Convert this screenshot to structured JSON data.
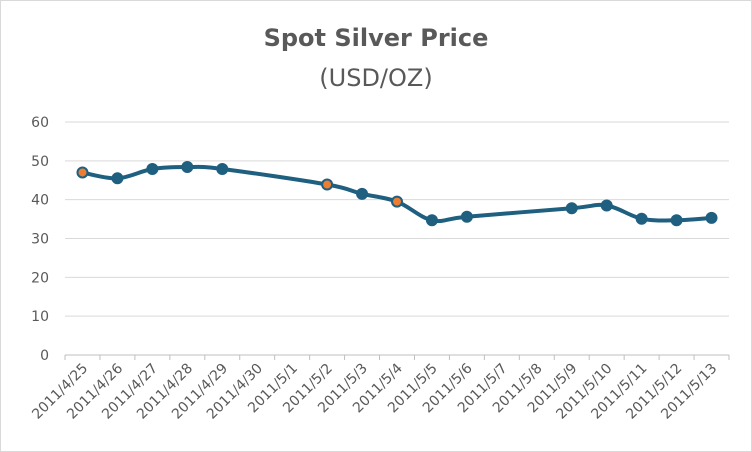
{
  "chart_data": {
    "type": "line",
    "title": "Spot Silver Price",
    "subtitle": "(USD/OZ)",
    "categories": [
      "2011/4/25",
      "2011/4/26",
      "2011/4/27",
      "2011/4/28",
      "2011/4/29",
      "2011/4/30",
      "2011/5/1",
      "2011/5/2",
      "2011/5/3",
      "2011/5/4",
      "2011/5/5",
      "2011/5/6",
      "2011/5/7",
      "2011/5/8",
      "2011/5/9",
      "2011/5/10",
      "2011/5/11",
      "2011/5/12",
      "2011/5/13"
    ],
    "series": [
      {
        "values": [
          47.0,
          45.5,
          47.9,
          48.4,
          47.9,
          null,
          null,
          43.9,
          41.5,
          39.5,
          34.7,
          35.6,
          null,
          null,
          37.8,
          38.5,
          35.1,
          34.7,
          35.3
        ],
        "highlighted_points": [
          "2011/4/25",
          "2011/5/2",
          "2011/5/4"
        ]
      }
    ],
    "ylim": [
      0,
      60
    ],
    "yticks": [
      "0",
      "10",
      "20",
      "30",
      "40",
      "50",
      "60"
    ],
    "grid": true,
    "legend": "none",
    "colors": {
      "line": "#1f5f7f",
      "marker": "#1f5f7f",
      "highlight_marker": "#ed7d31"
    }
  }
}
